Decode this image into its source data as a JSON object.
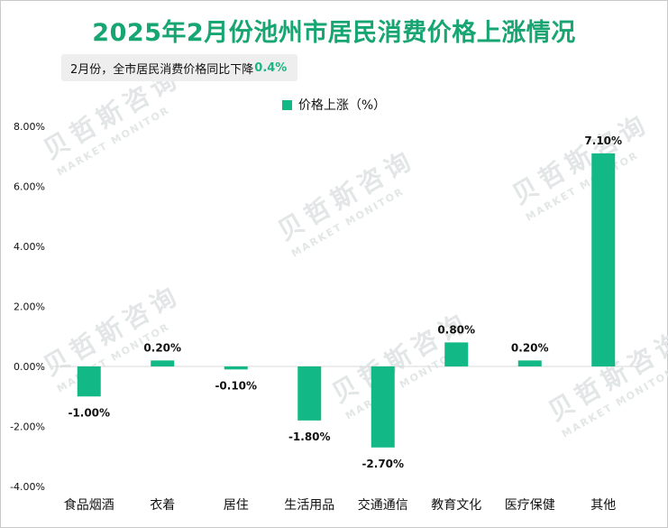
{
  "title": "2025年2月份池州市居民消费价格上涨情况",
  "subtitle": {
    "text": "2月份，全市居民消费价格同比下降",
    "value": "0.4%"
  },
  "watermark": {
    "cn": "贝哲斯咨询",
    "en": "MARKET MONITOR"
  },
  "colors": {
    "title": "#17a672",
    "bar": "#12b886",
    "highlight": "#1db584"
  },
  "chart_data": {
    "type": "bar",
    "categories": [
      "食品烟酒",
      "衣着",
      "居住",
      "生活用品",
      "交通通信",
      "教育文化",
      "医疗保健",
      "其他"
    ],
    "series": [
      {
        "name": "价格上涨（%）",
        "values": [
          -1.0,
          0.2,
          -0.1,
          -1.8,
          -2.7,
          0.8,
          0.2,
          7.1
        ]
      }
    ],
    "data_labels": [
      "-1.00%",
      "0.20%",
      "-0.10%",
      "-1.80%",
      "-2.70%",
      "0.80%",
      "0.20%",
      "7.10%"
    ],
    "y_ticks": [
      "8.00%",
      "6.00%",
      "4.00%",
      "2.00%",
      "0.00%",
      "-2.00%",
      "-4.00%"
    ],
    "y_tick_values": [
      8,
      6,
      4,
      2,
      0,
      -2,
      -4
    ],
    "ylim": [
      -4,
      8
    ],
    "grid": false,
    "legend_position": "top-center"
  }
}
